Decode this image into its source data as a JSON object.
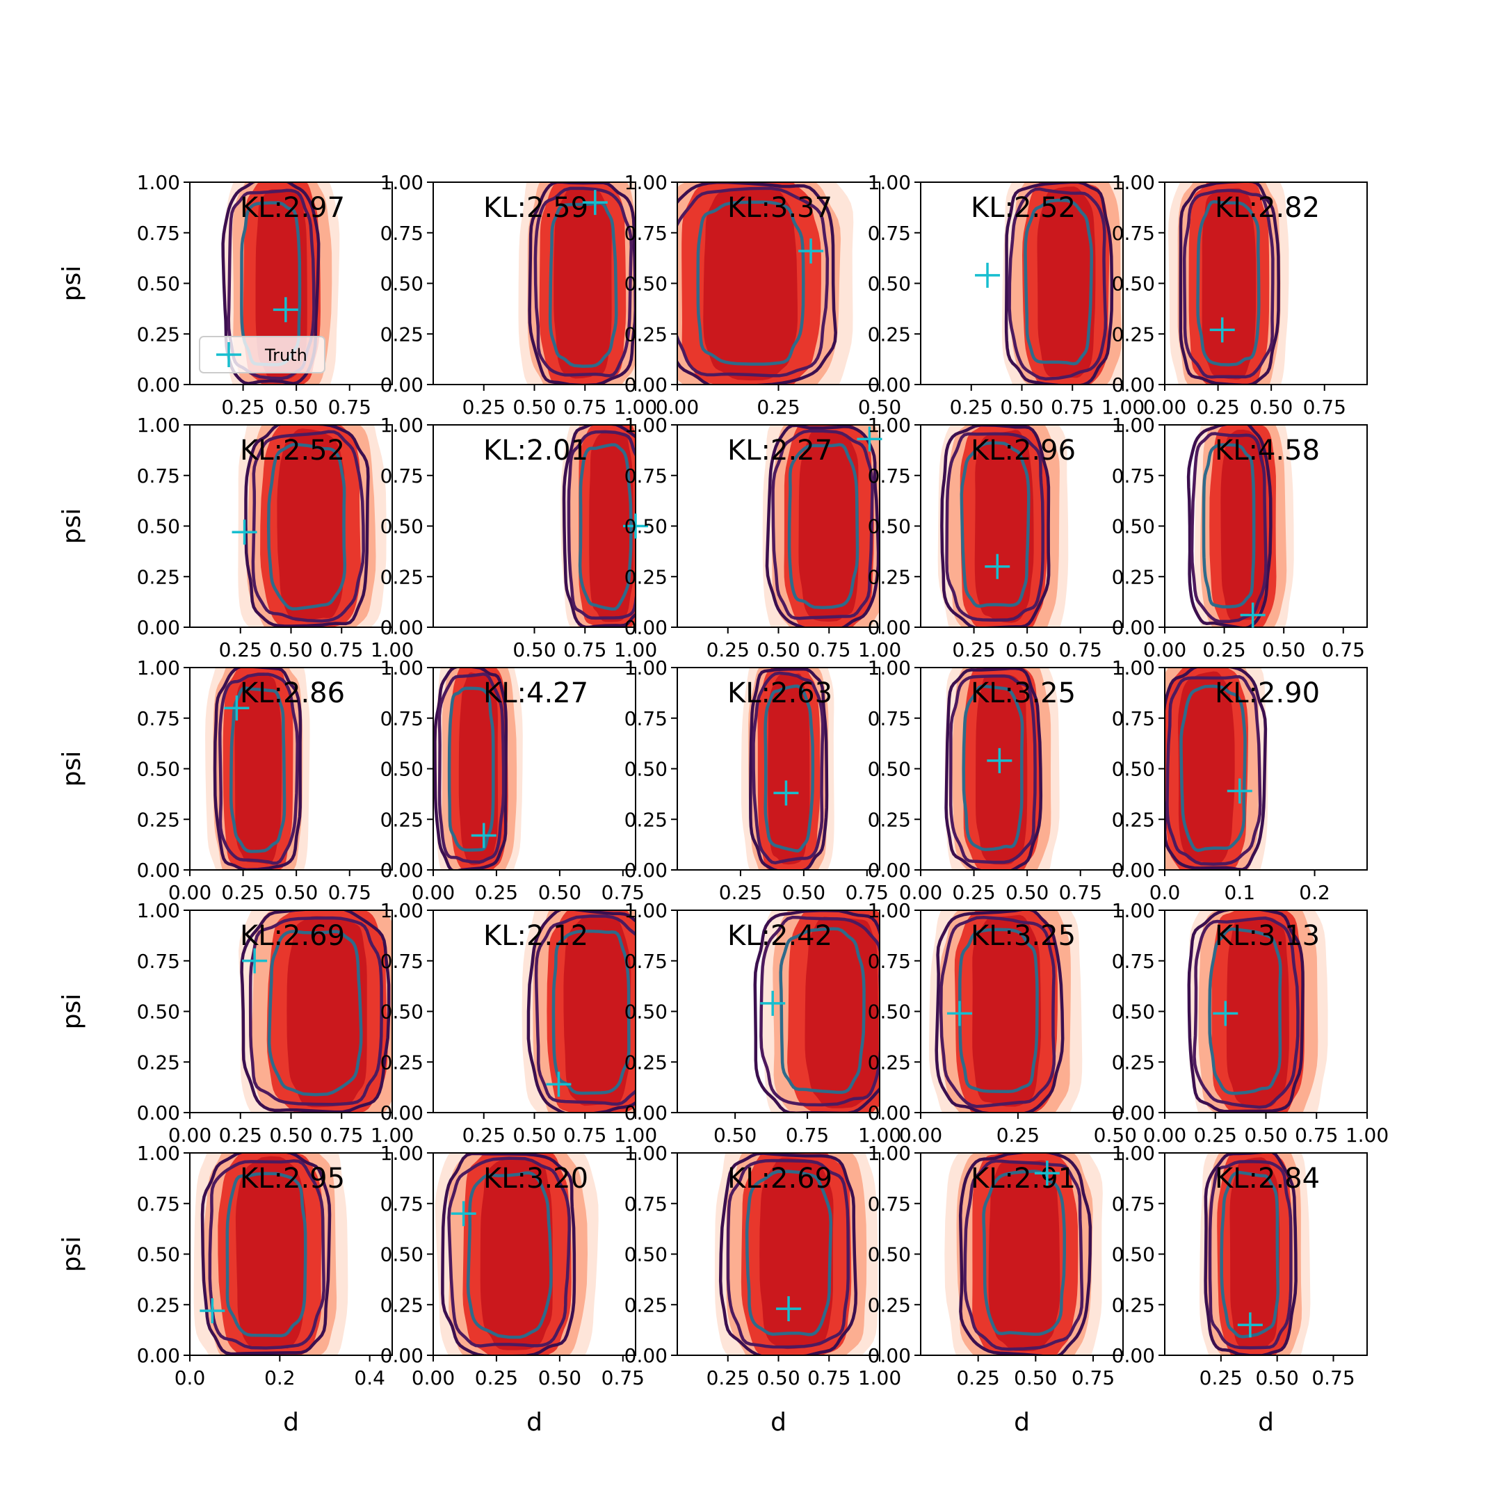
{
  "chart_data": {
    "type": "contour-grid",
    "rows": 5,
    "cols": 5,
    "ylabel": "psi",
    "xlabel": "d",
    "ylim": [
      0,
      1
    ],
    "yticks": [
      "0.00",
      "0.25",
      "0.50",
      "0.75",
      "1.00"
    ],
    "legend": {
      "label": "Truth",
      "placement": "lower-left",
      "panel": 0
    },
    "colors": {
      "fill_outer": "#fee5d9",
      "fill_mid": "#fcae91",
      "fill_inner": "#e8372c",
      "fill_core": "#cb181d",
      "contour_outer": "#3b0f4f",
      "contour_mid": "#4d1a5e",
      "contour_inner": "#2e6b8a",
      "truth_marker": "#17becf"
    },
    "panels": [
      {
        "kl": "KL:2.97",
        "xlim": [
          0,
          0.95
        ],
        "xticks": [
          "0.25",
          "0.50",
          "0.75"
        ],
        "xtick_values": [
          0.25,
          0.5,
          0.75
        ],
        "center": 0.38,
        "half_width": 0.22,
        "post_shift": 0.05,
        "truth": [
          0.45,
          0.37
        ]
      },
      {
        "kl": "KL:2.59",
        "xlim": [
          0,
          1.0
        ],
        "xticks": [
          "0.25",
          "0.50",
          "0.75",
          "1.00"
        ],
        "xtick_values": [
          0.25,
          0.5,
          0.75,
          1.0
        ],
        "center": 0.74,
        "half_width": 0.26,
        "post_shift": 0.0,
        "truth": [
          0.8,
          0.9
        ]
      },
      {
        "kl": "KL:3.37",
        "xlim": [
          0,
          0.5
        ],
        "xticks": [
          "0.00",
          "0.25",
          "0.50"
        ],
        "xtick_values": [
          0.0,
          0.25,
          0.5
        ],
        "center": 0.18,
        "half_width": 0.21,
        "post_shift": 0.0,
        "truth": [
          0.33,
          0.66
        ]
      },
      {
        "kl": "KL:2.52",
        "xlim": [
          0,
          1.0
        ],
        "xticks": [
          "0.25",
          "0.50",
          "0.75",
          "1.00"
        ],
        "xtick_values": [
          0.25,
          0.5,
          0.75,
          1.0
        ],
        "center": 0.68,
        "half_width": 0.26,
        "post_shift": 0.04,
        "truth": [
          0.33,
          0.54
        ]
      },
      {
        "kl": "KL:2.82",
        "xlim": [
          0,
          0.95
        ],
        "xticks": [
          "0.00",
          "0.25",
          "0.50",
          "0.75"
        ],
        "xtick_values": [
          0.0,
          0.25,
          0.5,
          0.75
        ],
        "center": 0.3,
        "half_width": 0.23,
        "post_shift": 0.0,
        "truth": [
          0.27,
          0.27
        ]
      },
      {
        "kl": "KL:2.52",
        "xlim": [
          0,
          1.0
        ],
        "xticks": [
          "0.25",
          "0.50",
          "0.75",
          "1.00"
        ],
        "xtick_values": [
          0.25,
          0.5,
          0.75,
          1.0
        ],
        "center": 0.58,
        "half_width": 0.3,
        "post_shift": 0.02,
        "truth": [
          0.27,
          0.47
        ]
      },
      {
        "kl": "KL:2.01",
        "xlim": [
          0,
          1.0
        ],
        "xticks": [
          "0.50",
          "0.75",
          "1.00"
        ],
        "xtick_values": [
          0.5,
          0.75,
          1.0
        ],
        "center": 0.85,
        "half_width": 0.2,
        "post_shift": 0.03,
        "truth": [
          1.0,
          0.5
        ]
      },
      {
        "kl": "KL:2.27",
        "xlim": [
          0,
          1.0
        ],
        "xticks": [
          "0.25",
          "0.50",
          "0.75",
          "1.00"
        ],
        "xtick_values": [
          0.25,
          0.5,
          0.75,
          1.0
        ],
        "center": 0.72,
        "half_width": 0.27,
        "post_shift": 0.03,
        "truth": [
          0.95,
          0.93
        ]
      },
      {
        "kl": "KL:2.96",
        "xlim": [
          0,
          0.95
        ],
        "xticks": [
          "0.25",
          "0.50",
          "0.75"
        ],
        "xtick_values": [
          0.25,
          0.5,
          0.75
        ],
        "center": 0.35,
        "half_width": 0.25,
        "post_shift": 0.04,
        "truth": [
          0.36,
          0.3
        ]
      },
      {
        "kl": "KL:4.58",
        "xlim": [
          0,
          0.85
        ],
        "xticks": [
          "0.00",
          "0.25",
          "0.50",
          "0.75"
        ],
        "xtick_values": [
          0.0,
          0.25,
          0.5,
          0.75
        ],
        "center": 0.27,
        "half_width": 0.17,
        "post_shift": 0.06,
        "truth": [
          0.37,
          0.06
        ]
      },
      {
        "kl": "KL:2.86",
        "xlim": [
          0,
          0.95
        ],
        "xticks": [
          "0.00",
          "0.25",
          "0.50",
          "0.75"
        ],
        "xtick_values": [
          0.0,
          0.25,
          0.5,
          0.75
        ],
        "center": 0.32,
        "half_width": 0.2,
        "post_shift": 0.0,
        "truth": [
          0.22,
          0.8
        ]
      },
      {
        "kl": "KL:4.27",
        "xlim": [
          0,
          0.8
        ],
        "xticks": [
          "0.00",
          "0.25",
          "0.50",
          "0.75"
        ],
        "xtick_values": [
          0.0,
          0.25,
          0.5,
          0.75
        ],
        "center": 0.15,
        "half_width": 0.14,
        "post_shift": 0.03,
        "truth": [
          0.2,
          0.17
        ]
      },
      {
        "kl": "KL:2.63",
        "xlim": [
          0,
          0.8
        ],
        "xticks": [
          "0.25",
          "0.50",
          "0.75"
        ],
        "xtick_values": [
          0.25,
          0.5,
          0.75
        ],
        "center": 0.44,
        "half_width": 0.15,
        "post_shift": 0.0,
        "truth": [
          0.43,
          0.38
        ]
      },
      {
        "kl": "KL:3.25",
        "xlim": [
          0,
          0.95
        ],
        "xticks": [
          "0.00",
          "0.25",
          "0.50",
          "0.75"
        ],
        "xtick_values": [
          0.0,
          0.25,
          0.5,
          0.75
        ],
        "center": 0.34,
        "half_width": 0.22,
        "post_shift": 0.04,
        "truth": [
          0.37,
          0.54
        ]
      },
      {
        "kl": "KL:2.90",
        "xlim": [
          0,
          0.27
        ],
        "xticks": [
          "0.0",
          "0.1",
          "0.2"
        ],
        "xtick_values": [
          0.0,
          0.1,
          0.2
        ],
        "center": 0.065,
        "half_width": 0.068,
        "post_shift": -0.01,
        "truth": [
          0.1,
          0.39
        ]
      },
      {
        "kl": "KL:2.69",
        "xlim": [
          0,
          1.0
        ],
        "xticks": [
          "0.00",
          "0.25",
          "0.50",
          "0.75",
          "1.00"
        ],
        "xtick_values": [
          0.0,
          0.25,
          0.5,
          0.75,
          1.0
        ],
        "center": 0.62,
        "half_width": 0.36,
        "post_shift": 0.06,
        "truth": [
          0.32,
          0.75
        ]
      },
      {
        "kl": "KL:2.12",
        "xlim": [
          0,
          1.0
        ],
        "xticks": [
          "0.25",
          "0.50",
          "0.75",
          "1.00"
        ],
        "xtick_values": [
          0.25,
          0.5,
          0.75,
          1.0
        ],
        "center": 0.78,
        "half_width": 0.3,
        "post_shift": 0.03,
        "truth": [
          0.62,
          0.14
        ]
      },
      {
        "kl": "KL:2.42",
        "xlim": [
          0.3,
          1.0
        ],
        "xticks": [
          "0.50",
          "0.75",
          "1.00"
        ],
        "xtick_values": [
          0.5,
          0.75,
          1.0
        ],
        "center": 0.8,
        "half_width": 0.23,
        "post_shift": 0.07,
        "truth": [
          0.63,
          0.54
        ]
      },
      {
        "kl": "KL:3.25",
        "xlim": [
          0,
          0.52
        ],
        "xticks": [
          "0.00",
          "0.25",
          "0.50"
        ],
        "xtick_values": [
          0.0,
          0.25,
          0.5
        ],
        "center": 0.2,
        "half_width": 0.16,
        "post_shift": 0.02,
        "truth": [
          0.1,
          0.49
        ]
      },
      {
        "kl": "KL:3.13",
        "xlim": [
          0,
          1.0
        ],
        "xticks": [
          "0.00",
          "0.25",
          "0.50",
          "0.75",
          "1.00"
        ],
        "xtick_values": [
          0.0,
          0.25,
          0.5,
          0.75,
          1.0
        ],
        "center": 0.4,
        "half_width": 0.28,
        "post_shift": 0.06,
        "truth": [
          0.3,
          0.49
        ]
      },
      {
        "kl": "KL:2.95",
        "xlim": [
          0,
          0.45
        ],
        "xticks": [
          "0.0",
          "0.2",
          "0.4"
        ],
        "xtick_values": [
          0.0,
          0.2,
          0.4
        ],
        "center": 0.17,
        "half_width": 0.14,
        "post_shift": 0.01,
        "truth": [
          0.05,
          0.22
        ]
      },
      {
        "kl": "KL:3.20",
        "xlim": [
          0,
          0.8
        ],
        "xticks": [
          "0.00",
          "0.25",
          "0.50",
          "0.75"
        ],
        "xtick_values": [
          0.0,
          0.25,
          0.5,
          0.75
        ],
        "center": 0.3,
        "half_width": 0.26,
        "post_shift": 0.03,
        "truth": [
          0.12,
          0.7
        ]
      },
      {
        "kl": "KL:2.69",
        "xlim": [
          0,
          1.0
        ],
        "xticks": [
          "0.25",
          "0.50",
          "0.75",
          "1.00"
        ],
        "xtick_values": [
          0.25,
          0.5,
          0.75,
          1.0
        ],
        "center": 0.55,
        "half_width": 0.33,
        "post_shift": 0.04,
        "truth": [
          0.55,
          0.23
        ]
      },
      {
        "kl": "KL:2.91",
        "xlim": [
          0,
          0.88
        ],
        "xticks": [
          "0.25",
          "0.50",
          "0.75"
        ],
        "xtick_values": [
          0.25,
          0.5,
          0.75
        ],
        "center": 0.45,
        "half_width": 0.28,
        "post_shift": 0.0,
        "truth": [
          0.55,
          0.9
        ]
      },
      {
        "kl": "KL:2.84",
        "xlim": [
          0,
          0.9
        ],
        "xticks": [
          "0.25",
          "0.50",
          "0.75"
        ],
        "xtick_values": [
          0.25,
          0.5,
          0.75
        ],
        "center": 0.38,
        "half_width": 0.2,
        "post_shift": 0.02,
        "truth": [
          0.38,
          0.15
        ]
      }
    ]
  }
}
